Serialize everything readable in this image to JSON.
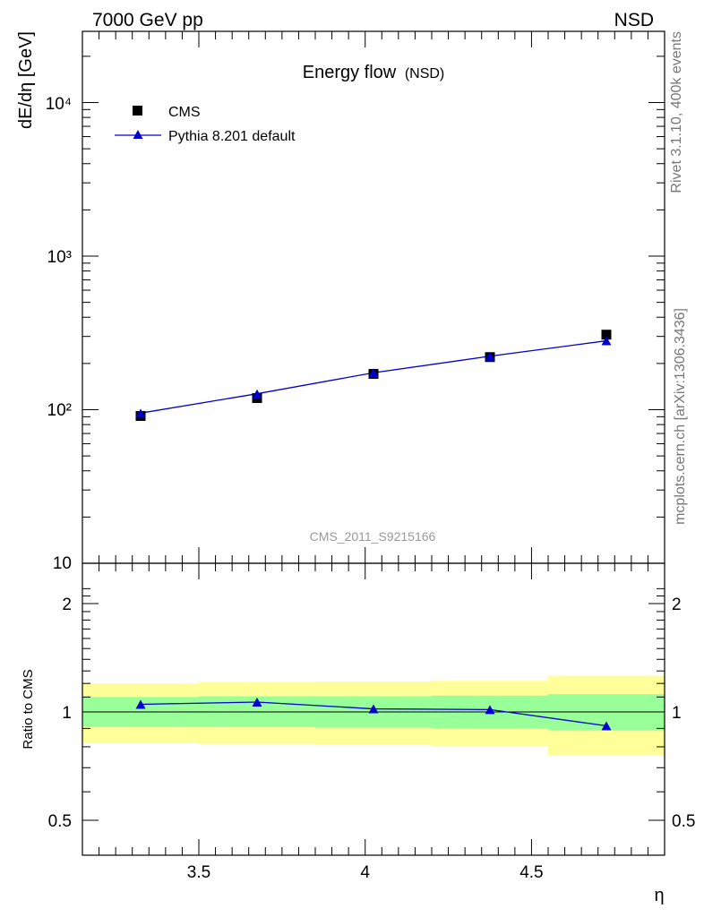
{
  "header": {
    "energy_label": "7000 GeV pp",
    "process_label": "NSD"
  },
  "side_labels": {
    "rivet": "Rivet 3.1.10,  400k events",
    "mcplots": "mcplots.cern.ch [arXiv:1306.3436]"
  },
  "analysis_id": "CMS_2011_S9215166",
  "chart_data": [
    {
      "type": "line",
      "title": "Energy flow",
      "title_suffix": "(NSD)",
      "ylabel": "dE/dη [GeV]",
      "xlabel": "η",
      "xlim": [
        3.15,
        4.9
      ],
      "ylim": [
        10,
        30000
      ],
      "yscale": "log",
      "ytick_labels": [
        "10",
        "10²",
        "10³",
        "10⁴"
      ],
      "legend_position": "top-left",
      "series": [
        {
          "name": "CMS",
          "marker": "square",
          "color": "#000000",
          "x": [
            3.325,
            3.675,
            4.025,
            4.375,
            4.725
          ],
          "y": [
            91,
            119,
            171,
            220,
            308
          ]
        },
        {
          "name": "Pythia 8.201 default",
          "marker": "triangle",
          "color": "#0000cc",
          "x": [
            3.325,
            3.675,
            4.025,
            4.375,
            4.725
          ],
          "y": [
            95,
            127,
            174,
            223,
            281
          ]
        }
      ]
    },
    {
      "type": "line",
      "ylabel": "Ratio to CMS",
      "xlabel": "η",
      "xlim": [
        3.15,
        4.9
      ],
      "ylim": [
        0.4,
        2.3
      ],
      "yscale": "log",
      "yticks": [
        0.5,
        1,
        2
      ],
      "xticks": [
        3.5,
        4,
        4.5
      ],
      "bands": {
        "bin_edges": [
          3.15,
          3.5,
          3.85,
          4.2,
          4.55,
          4.9
        ],
        "inner_color": "#99ff99",
        "outer_color": "#ffff99",
        "inner": [
          [
            0.91,
            1.1
          ],
          [
            0.91,
            1.105
          ],
          [
            0.905,
            1.105
          ],
          [
            0.9,
            1.11
          ],
          [
            0.89,
            1.12
          ]
        ],
        "outer": [
          [
            0.82,
            1.2
          ],
          [
            0.815,
            1.21
          ],
          [
            0.81,
            1.215
          ],
          [
            0.805,
            1.22
          ],
          [
            0.76,
            1.26
          ]
        ]
      },
      "series": [
        {
          "name": "Pythia 8.201 default",
          "marker": "triangle",
          "color": "#0000cc",
          "x": [
            3.325,
            3.675,
            4.025,
            4.375,
            4.725
          ],
          "y": [
            1.05,
            1.065,
            1.02,
            1.015,
            0.915
          ]
        }
      ]
    }
  ]
}
